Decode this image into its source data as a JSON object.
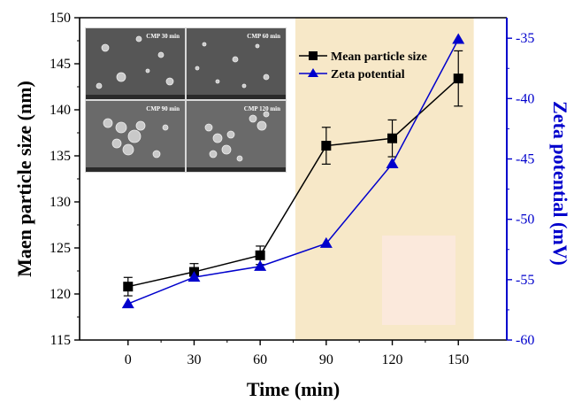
{
  "chart_data": {
    "type": "line",
    "x": [
      0,
      30,
      60,
      90,
      120,
      150
    ],
    "x_ticks": [
      "0",
      "30",
      "60",
      "90",
      "120",
      "150"
    ],
    "xlim": [
      -22,
      172
    ],
    "xlabel": "Time (min)",
    "ylabel_left": "Maen particle size (nm)",
    "ylabel_right": "Zeta potential (mV)",
    "ylim_left": [
      115,
      150
    ],
    "ylim_right": [
      -60,
      -33.3
    ],
    "left_ticks": [
      "115",
      "120",
      "125",
      "130",
      "135",
      "140",
      "145",
      "150"
    ],
    "right_ticks": [
      "-60",
      "-55",
      "-50",
      "-45",
      "-40",
      "-35"
    ],
    "colors": {
      "left": "#000000",
      "right": "#0000cc",
      "shade": "#f7e8c8",
      "shade_inner": "#fbe9dc"
    },
    "shaded_region_x": [
      76,
      157
    ],
    "series": [
      {
        "name": "Mean particle size",
        "axis": "left",
        "marker": "square",
        "values": [
          120.8,
          122.4,
          124.2,
          136.1,
          136.9,
          143.4
        ],
        "error": [
          1.0,
          0.9,
          1.0,
          2.0,
          2.0,
          3.0
        ]
      },
      {
        "name": "Zeta potential",
        "axis": "right",
        "marker": "triangle",
        "values": [
          -57.0,
          -54.8,
          -53.9,
          -52.0,
          -45.4,
          -35.1
        ]
      }
    ],
    "inset_labels": [
      "CMP 30 min",
      "CMP 60 min",
      "CMP 90 min",
      "CMP 120 min"
    ]
  }
}
